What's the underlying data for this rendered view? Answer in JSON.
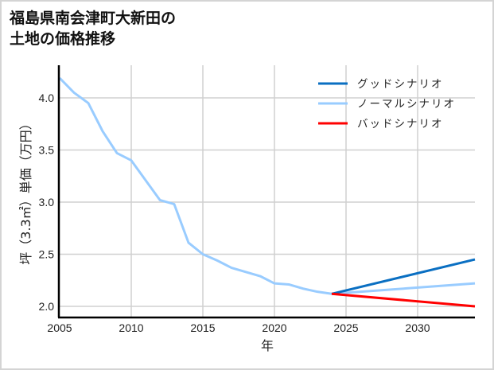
{
  "title_line1": "福島県南会津町大新田の",
  "title_line2": "土地の価格推移",
  "chart_data": {
    "type": "line",
    "title": "福島県南会津町大新田の土地の価格推移",
    "xlabel": "年",
    "ylabel": "坪（3.3㎡）単価（万円）",
    "xlim": [
      2005,
      2034
    ],
    "ylim": [
      1.9,
      4.3
    ],
    "xticks": [
      2005,
      2010,
      2015,
      2020,
      2025,
      2030
    ],
    "yticks": [
      2.0,
      2.5,
      3.0,
      3.5,
      4.0
    ],
    "ytick_labels": [
      "2.0",
      "2.5",
      "3.0",
      "3.5",
      "4.0"
    ],
    "grid": true,
    "legend_position": "upper right",
    "series": [
      {
        "name": "グッドシナリオ",
        "color": "#0a6fc2",
        "x": [
          2024,
          2034
        ],
        "values": [
          2.12,
          2.45
        ]
      },
      {
        "name": "ノーマルシナリオ",
        "color": "#99ccff",
        "x": [
          2005,
          2006,
          2007,
          2008,
          2009,
          2010,
          2011,
          2012,
          2013,
          2014,
          2015,
          2016,
          2017,
          2018,
          2019,
          2020,
          2021,
          2022,
          2023,
          2024,
          2034
        ],
        "values": [
          4.19,
          4.05,
          3.95,
          3.68,
          3.47,
          3.4,
          3.21,
          3.02,
          2.98,
          2.61,
          2.5,
          2.44,
          2.37,
          2.33,
          2.29,
          2.22,
          2.21,
          2.17,
          2.14,
          2.12,
          2.22
        ]
      },
      {
        "name": "バッドシナリオ",
        "color": "#ff0000",
        "x": [
          2024,
          2034
        ],
        "values": [
          2.12,
          2.0
        ]
      }
    ]
  }
}
